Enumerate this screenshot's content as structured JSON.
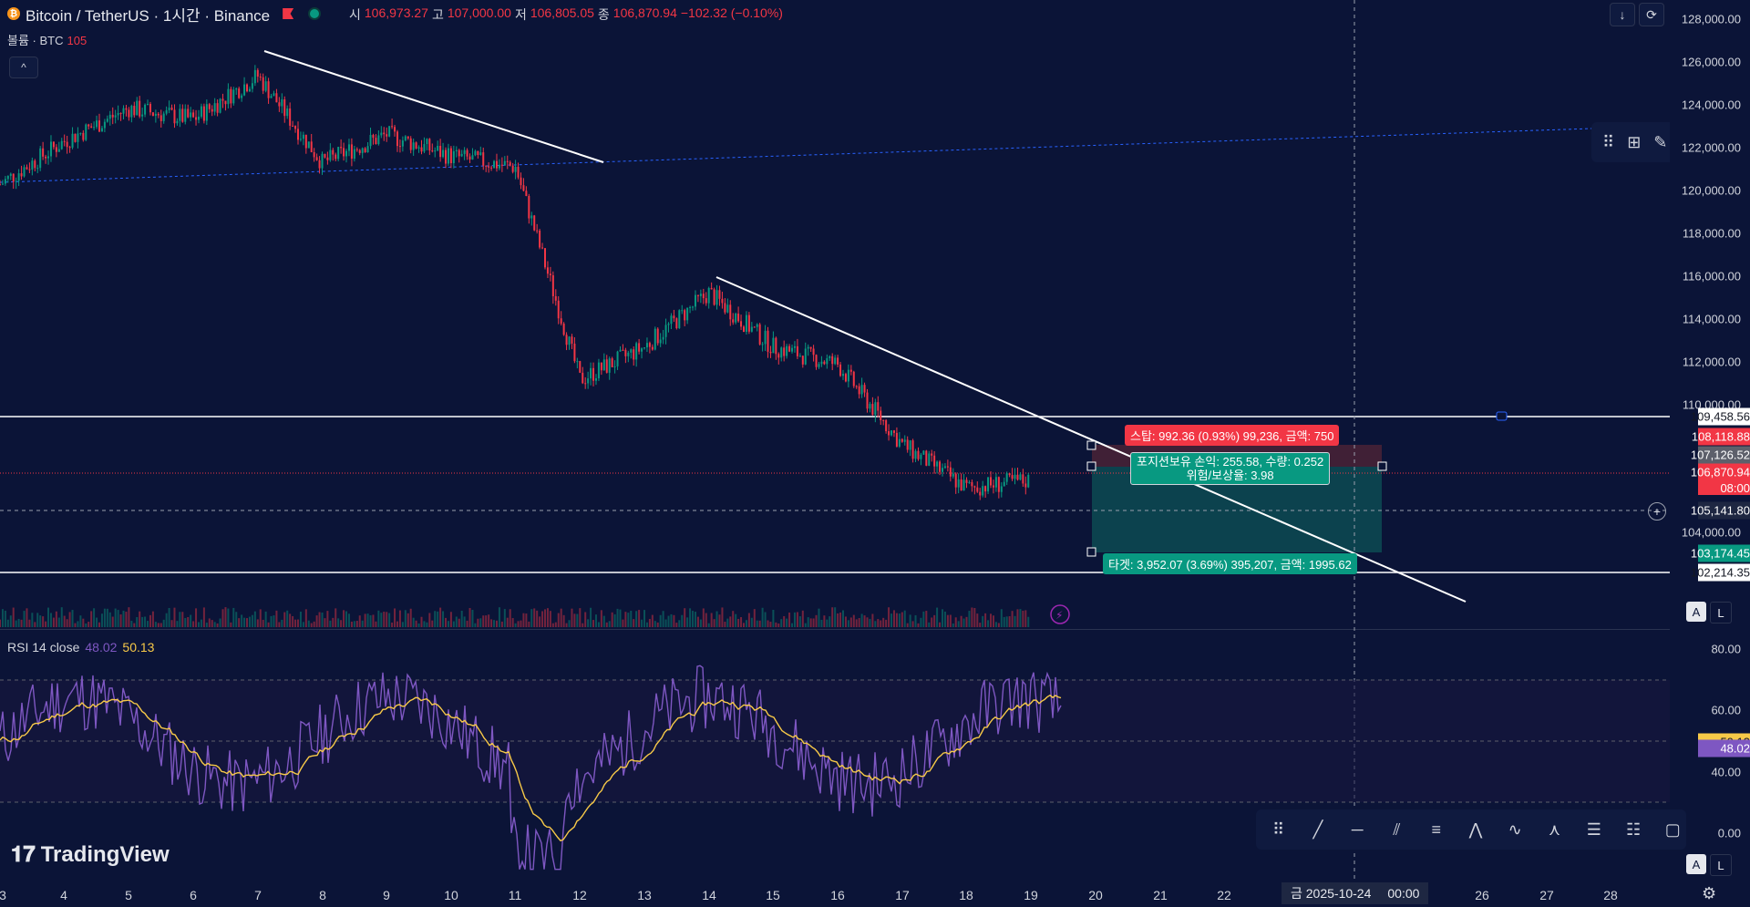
{
  "header": {
    "coin_icon": "bitcoin-icon",
    "symbol": "Bitcoin / TetherUS · 1시간 · Binance",
    "ohlc": {
      "open_label": "시",
      "open": "106,973.27",
      "high_label": "고",
      "high": "107,000.00",
      "low_label": "저",
      "low": "106,805.05",
      "close_label": "종",
      "close": "106,870.94",
      "change": "−102.32 (−0.10%)"
    },
    "volume_label": "볼륨 · BTC",
    "volume_value": "105"
  },
  "price_axis": {
    "ticks": [
      "128,000.00",
      "126,000.00",
      "124,000.00",
      "122,000.00",
      "120,000.00",
      "118,000.00",
      "116,000.00",
      "114,000.00",
      "112,000.00",
      "110,000.00",
      "104,000.00"
    ],
    "badges": [
      {
        "text": "109,458.56",
        "bg": "#ffffff",
        "fg": "#131722"
      },
      {
        "text": "108,118.88",
        "bg": "#f23645",
        "fg": "#ffffff"
      },
      {
        "text": "107,126.52",
        "bg": "#5d606b",
        "fg": "#ffffff"
      },
      {
        "text": "106,870.94",
        "bg": "#f23645",
        "fg": "#ffffff"
      },
      {
        "text": "105,141.80",
        "bg": "#1e2742",
        "fg": "#ffffff"
      },
      {
        "text": "103,174.45",
        "bg": "#089981",
        "fg": "#ffffff"
      },
      {
        "text": "102,214.35",
        "bg": "#ffffff",
        "fg": "#131722"
      }
    ],
    "countdown": "08:00"
  },
  "position": {
    "stop": "스탑: 992.36 (0.93%) 99,236, 금액: 750",
    "pl_line1": "포지션보유 손익: 255.58, 수량: 0.252",
    "pl_line2": "위험/보상율: 3.98",
    "target": "타겟: 3,952.07 (3.69%) 395,207, 금액: 1995.62"
  },
  "rsi": {
    "label": "RSI 14 close",
    "value_rsi": "48.02",
    "value_ma": "50.13",
    "ticks": [
      "80.00",
      "60.00",
      "40.00",
      "0.00"
    ]
  },
  "x_axis": {
    "ticks": [
      "3",
      "4",
      "5",
      "6",
      "7",
      "8",
      "9",
      "10",
      "11",
      "12",
      "13",
      "14",
      "15",
      "16",
      "17",
      "18",
      "19",
      "20",
      "21",
      "22",
      "26",
      "27",
      "28"
    ],
    "cursor_date": "금 2025-10-24",
    "cursor_time": "00:00"
  },
  "logo_text": "TradingView",
  "colors": {
    "background": "#0b1437",
    "up": "#089981",
    "down": "#f23645",
    "rsi": "#7e57c2",
    "rsi_ma": "#f7c948"
  },
  "chart_data": {
    "type": "line",
    "title": "",
    "xlabel": "",
    "ylabel": "",
    "x": [
      "3",
      "4",
      "5",
      "6",
      "7",
      "8",
      "9",
      "10",
      "11",
      "12",
      "13",
      "14",
      "15",
      "16",
      "17",
      "18",
      "19"
    ],
    "series": [
      {
        "values": [
          120500,
          122500,
          124000,
          123500,
          125500,
          121500,
          122800,
          121800,
          121300,
          111500,
          113000,
          115500,
          113000,
          112200,
          108500,
          106500,
          106870
        ]
      }
    ],
    "ylim": [
      100000,
      129000
    ]
  }
}
